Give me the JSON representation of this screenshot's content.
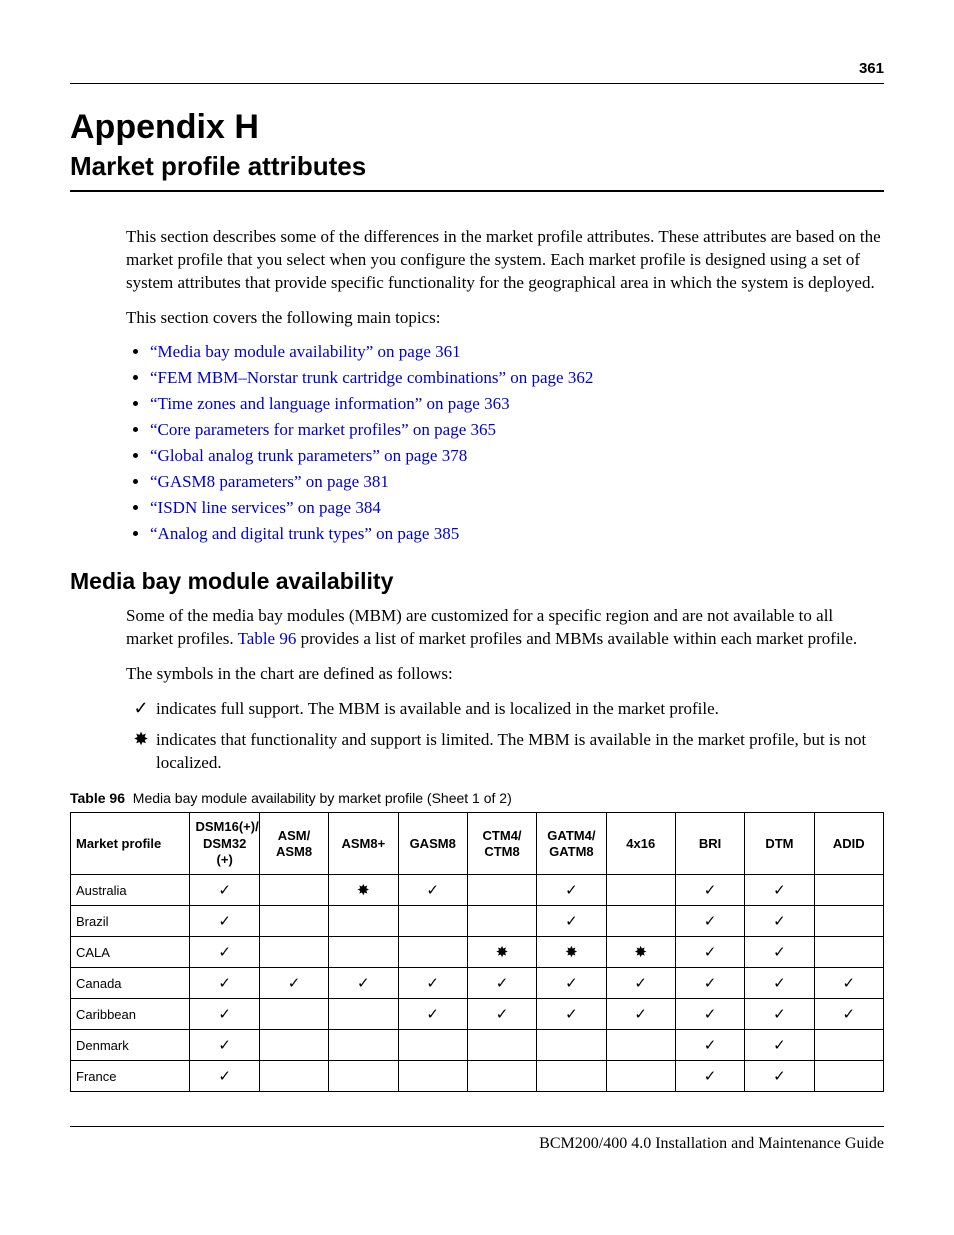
{
  "page_number": "361",
  "appendix_label": "Appendix H",
  "appendix_subtitle": "Market profile attributes",
  "intro_para": "This section describes some of the differences in the market profile attributes. These attributes are based on the market profile that you select when you configure the system. Each market profile is designed using a set of system attributes that provide specific functionality for the geographical area in which the system is deployed.",
  "topics_intro": "This section covers the following main topics:",
  "topics": [
    "“Media bay module availability” on page 361",
    "“FEM MBM–Norstar trunk cartridge combinations” on page 362",
    "“Time zones and language information” on page 363",
    "“Core parameters for market profiles” on page 365",
    "“Global analog trunk parameters” on page 378",
    "“GASM8 parameters” on page 381",
    "“ISDN line services” on page 384",
    "“Analog and digital trunk types” on page 385"
  ],
  "section_heading": "Media bay module availability",
  "section_para_pre": "Some of the media bay modules (MBM) are customized for a specific region and are not available to all market profiles. ",
  "section_para_link": "Table 96",
  "section_para_post": " provides a list of market profiles and MBMs available within each market profile.",
  "symbols_intro": "The symbols in the chart are defined as follows:",
  "symbols": [
    {
      "glyph": "✓",
      "text": "indicates full support. The MBM is available and is localized in the market profile."
    },
    {
      "glyph": "✸",
      "text": "indicates that functionality and support is limited. The MBM is available in the market profile, but is not localized."
    }
  ],
  "table_caption_bold": "Table 96",
  "table_caption_rest": "Media bay module availability by market profile (Sheet 1 of 2)",
  "table": {
    "check": "✓",
    "star": "✸",
    "columns": [
      "Market profile",
      "DSM16(+)/\nDSM32 (+)",
      "ASM/\nASM8",
      "ASM8+",
      "GASM8",
      "CTM4/\nCTM8",
      "GATM4/\nGATM8",
      "4x16",
      "BRI",
      "DTM",
      "ADID"
    ],
    "rows": [
      {
        "label": "Australia",
        "cells": [
          "c",
          "",
          "s",
          "c",
          "",
          "c",
          "",
          "c",
          "c",
          ""
        ]
      },
      {
        "label": "Brazil",
        "cells": [
          "c",
          "",
          "",
          "",
          "",
          "c",
          "",
          "c",
          "c",
          ""
        ]
      },
      {
        "label": "CALA",
        "cells": [
          "c",
          "",
          "",
          "",
          "s",
          "s",
          "s",
          "c",
          "c",
          ""
        ]
      },
      {
        "label": "Canada",
        "cells": [
          "c",
          "c",
          "c",
          "c",
          "c",
          "c",
          "c",
          "c",
          "c",
          "c"
        ]
      },
      {
        "label": "Caribbean",
        "cells": [
          "c",
          "",
          "",
          "c",
          "c",
          "c",
          "c",
          "c",
          "c",
          "c"
        ]
      },
      {
        "label": "Denmark",
        "cells": [
          "c",
          "",
          "",
          "",
          "",
          "",
          "",
          "c",
          "c",
          ""
        ]
      },
      {
        "label": "France",
        "cells": [
          "c",
          "",
          "",
          "",
          "",
          "",
          "",
          "c",
          "c",
          ""
        ]
      }
    ]
  },
  "footer": "BCM200/400 4.0 Installation and Maintenance Guide"
}
